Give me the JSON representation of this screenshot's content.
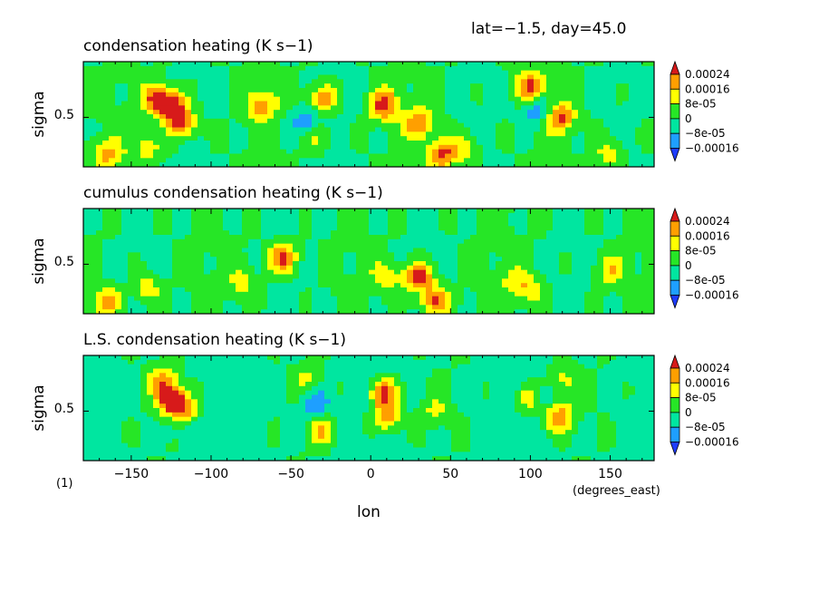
{
  "header": {
    "subtitle": "lat=−1.5, day=45.0"
  },
  "figure_label": "(1)",
  "colorbar": {
    "labels": [
      "0.00024",
      "0.00016",
      "8e-05",
      "0",
      "−8e-05",
      "−0.00016"
    ],
    "colors": [
      "#d71a1a",
      "#ff9f00",
      "#ffff00",
      "#26e626",
      "#00e6a0",
      "#1e9fff",
      "#1e3cff"
    ]
  },
  "chart_data": [
    {
      "type": "heatmap",
      "title": "condensation heating (K s−1)",
      "ylabel": "sigma",
      "yticks": [
        0.5
      ],
      "xlabel": "",
      "xticks": [],
      "xlim": [
        -180,
        177.5
      ],
      "ylim": [
        0.1,
        0.95
      ],
      "zlevels": [
        -0.00016,
        -8e-05,
        0,
        8e-05,
        0.00016,
        0.00024
      ],
      "hotspots": [
        {
          "lon": -125,
          "sigma": 0.6,
          "amp": 0.0003
        },
        {
          "lon": -118,
          "sigma": 0.45,
          "amp": 0.00026
        },
        {
          "lon": -135,
          "sigma": 0.65,
          "amp": 0.00022
        },
        {
          "lon": -165,
          "sigma": 0.2,
          "amp": 0.00018
        },
        {
          "lon": -140,
          "sigma": 0.25,
          "amp": 0.00012
        },
        {
          "lon": -68,
          "sigma": 0.6,
          "amp": 0.0002
        },
        {
          "lon": -30,
          "sigma": 0.65,
          "amp": 0.00022
        },
        {
          "lon": -35,
          "sigma": 0.35,
          "amp": 0.00014
        },
        {
          "lon": 8,
          "sigma": 0.6,
          "amp": 0.00028
        },
        {
          "lon": 30,
          "sigma": 0.45,
          "amp": 0.00022
        },
        {
          "lon": 45,
          "sigma": 0.2,
          "amp": 0.00026
        },
        {
          "lon": 60,
          "sigma": 0.25,
          "amp": 0.00012
        },
        {
          "lon": 100,
          "sigma": 0.75,
          "amp": 0.00024
        },
        {
          "lon": 118,
          "sigma": 0.5,
          "amp": 0.00026
        },
        {
          "lon": 150,
          "sigma": 0.2,
          "amp": 0.00014
        },
        {
          "lon": -40,
          "sigma": 0.45,
          "amp": -0.00018
        },
        {
          "lon": 105,
          "sigma": 0.55,
          "amp": -0.00016
        }
      ]
    },
    {
      "type": "heatmap",
      "title": "cumulus condensation heating (K s−1)",
      "ylabel": "sigma",
      "yticks": [
        0.5
      ],
      "xlabel": "",
      "xticks": [],
      "xlim": [
        -180,
        177.5
      ],
      "ylim": [
        0.1,
        0.95
      ],
      "zlevels": [
        -0.00016,
        -8e-05,
        0,
        8e-05,
        0.00016,
        0.00024
      ],
      "hotspots": [
        {
          "lon": -55,
          "sigma": 0.55,
          "amp": 0.00028
        },
        {
          "lon": 30,
          "sigma": 0.4,
          "amp": 0.00028
        },
        {
          "lon": 40,
          "sigma": 0.2,
          "amp": 0.00026
        },
        {
          "lon": -165,
          "sigma": 0.2,
          "amp": 0.00018
        },
        {
          "lon": -140,
          "sigma": 0.3,
          "amp": 0.00014
        },
        {
          "lon": -80,
          "sigma": 0.35,
          "amp": 0.00012
        },
        {
          "lon": 10,
          "sigma": 0.4,
          "amp": 0.00014
        },
        {
          "lon": 100,
          "sigma": 0.3,
          "amp": 0.00012
        },
        {
          "lon": 150,
          "sigma": 0.45,
          "amp": 0.00014
        },
        {
          "lon": 90,
          "sigma": 0.35,
          "amp": 0.0001
        }
      ]
    },
    {
      "type": "heatmap",
      "title": "L.S. condensation heating (K s−1)",
      "ylabel": "sigma",
      "yticks": [
        0.5
      ],
      "xlabel": "lon",
      "xunits": "(degrees_east)",
      "xticks": [
        -150,
        -100,
        -50,
        0,
        50,
        100,
        150
      ],
      "xlim": [
        -180,
        177.5
      ],
      "ylim": [
        0.1,
        0.95
      ],
      "zlevels": [
        -0.00016,
        -8e-05,
        0,
        8e-05,
        0.00016,
        0.00024
      ],
      "hotspots": [
        {
          "lon": -125,
          "sigma": 0.6,
          "amp": 0.0003
        },
        {
          "lon": -118,
          "sigma": 0.5,
          "amp": 0.00026
        },
        {
          "lon": -130,
          "sigma": 0.75,
          "amp": 0.00018
        },
        {
          "lon": 8,
          "sigma": 0.65,
          "amp": 0.00028
        },
        {
          "lon": 10,
          "sigma": 0.45,
          "amp": 0.00024
        },
        {
          "lon": -30,
          "sigma": 0.35,
          "amp": 0.00018
        },
        {
          "lon": -40,
          "sigma": 0.75,
          "amp": 0.0001
        },
        {
          "lon": 100,
          "sigma": 0.6,
          "amp": 0.00022
        },
        {
          "lon": 118,
          "sigma": 0.45,
          "amp": 0.00024
        },
        {
          "lon": 120,
          "sigma": 0.75,
          "amp": 0.00012
        },
        {
          "lon": 40,
          "sigma": 0.5,
          "amp": 0.0001
        },
        {
          "lon": -35,
          "sigma": 0.55,
          "amp": -0.00016
        },
        {
          "lon": 105,
          "sigma": 0.6,
          "amp": -0.00012
        },
        {
          "lon": -120,
          "sigma": 0.4,
          "amp": -0.0001
        }
      ]
    }
  ]
}
